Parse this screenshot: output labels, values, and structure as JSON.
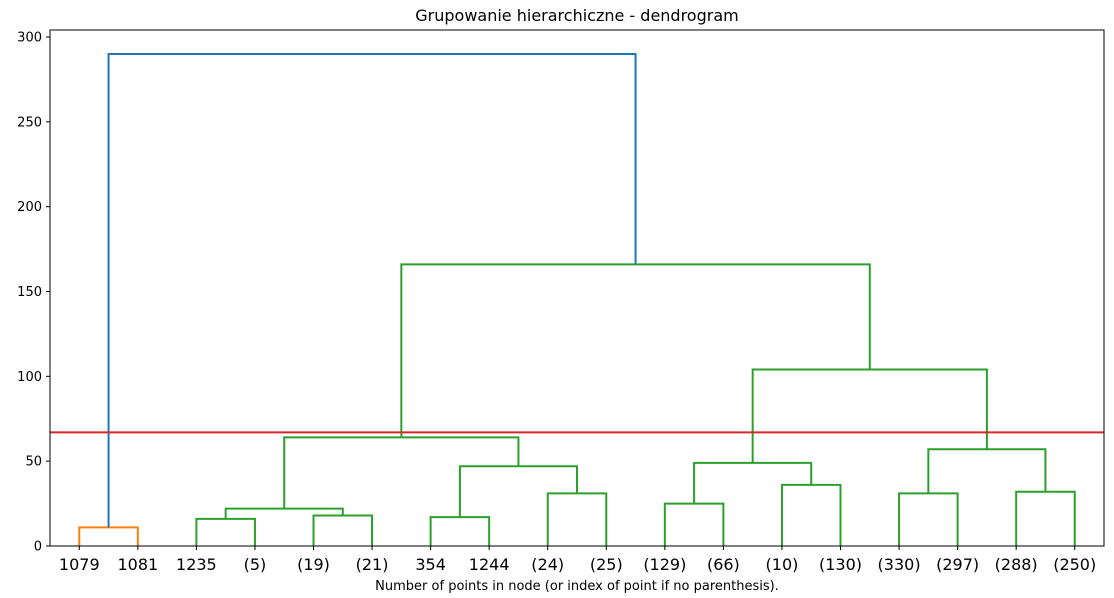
{
  "chart_data": {
    "type": "dendrogram",
    "title": "Grupowanie hierarchiczne - dendrogram",
    "xlabel": "Number of points in node (or index of point if no parenthesis).",
    "ylabel": "",
    "ylim": [
      0,
      300
    ],
    "yticks": [
      0,
      50,
      100,
      150,
      200,
      250,
      300
    ],
    "leaves": [
      "1079",
      "1081",
      "1235",
      "(5)",
      "(19)",
      "(21)",
      "354",
      "1244",
      "(24)",
      "(25)",
      "(129)",
      "(66)",
      "(10)",
      "(130)",
      "(330)",
      "(297)",
      "(288)",
      "(250)"
    ],
    "threshold": {
      "value": 67,
      "color": "#d62728"
    },
    "colors": {
      "orange": "#ff7f0e",
      "green": "#2ca02c",
      "blue": "#1f77b4"
    },
    "merges": [
      {
        "id": "A",
        "left": "L0",
        "right": "L1",
        "height": 11,
        "color": "orange"
      },
      {
        "id": "B",
        "left": "L2",
        "right": "L3",
        "height": 16,
        "color": "green"
      },
      {
        "id": "C",
        "left": "L4",
        "right": "L5",
        "height": 18,
        "color": "green"
      },
      {
        "id": "D",
        "left": "B",
        "right": "C",
        "height": 22,
        "color": "green"
      },
      {
        "id": "E",
        "left": "L6",
        "right": "L7",
        "height": 17,
        "color": "green"
      },
      {
        "id": "F",
        "left": "L8",
        "right": "L9",
        "height": 31,
        "color": "green"
      },
      {
        "id": "G",
        "left": "E",
        "right": "F",
        "height": 47,
        "color": "green"
      },
      {
        "id": "H",
        "left": "D",
        "right": "G",
        "height": 64,
        "color": "green"
      },
      {
        "id": "I",
        "left": "L10",
        "right": "L11",
        "height": 25,
        "color": "green"
      },
      {
        "id": "J",
        "left": "L12",
        "right": "L13",
        "height": 36,
        "color": "green"
      },
      {
        "id": "K",
        "left": "I",
        "right": "J",
        "height": 49,
        "color": "green"
      },
      {
        "id": "M",
        "left": "L14",
        "right": "L15",
        "height": 31,
        "color": "green"
      },
      {
        "id": "N",
        "left": "L16",
        "right": "L17",
        "height": 32,
        "color": "green"
      },
      {
        "id": "O",
        "left": "M",
        "right": "N",
        "height": 57,
        "color": "green"
      },
      {
        "id": "P",
        "left": "K",
        "right": "O",
        "height": 104,
        "color": "green"
      },
      {
        "id": "Q",
        "left": "H",
        "right": "P",
        "height": 166,
        "color": "green"
      },
      {
        "id": "R",
        "left": "A",
        "right": "Q",
        "height": 290,
        "color": "blue"
      }
    ]
  }
}
